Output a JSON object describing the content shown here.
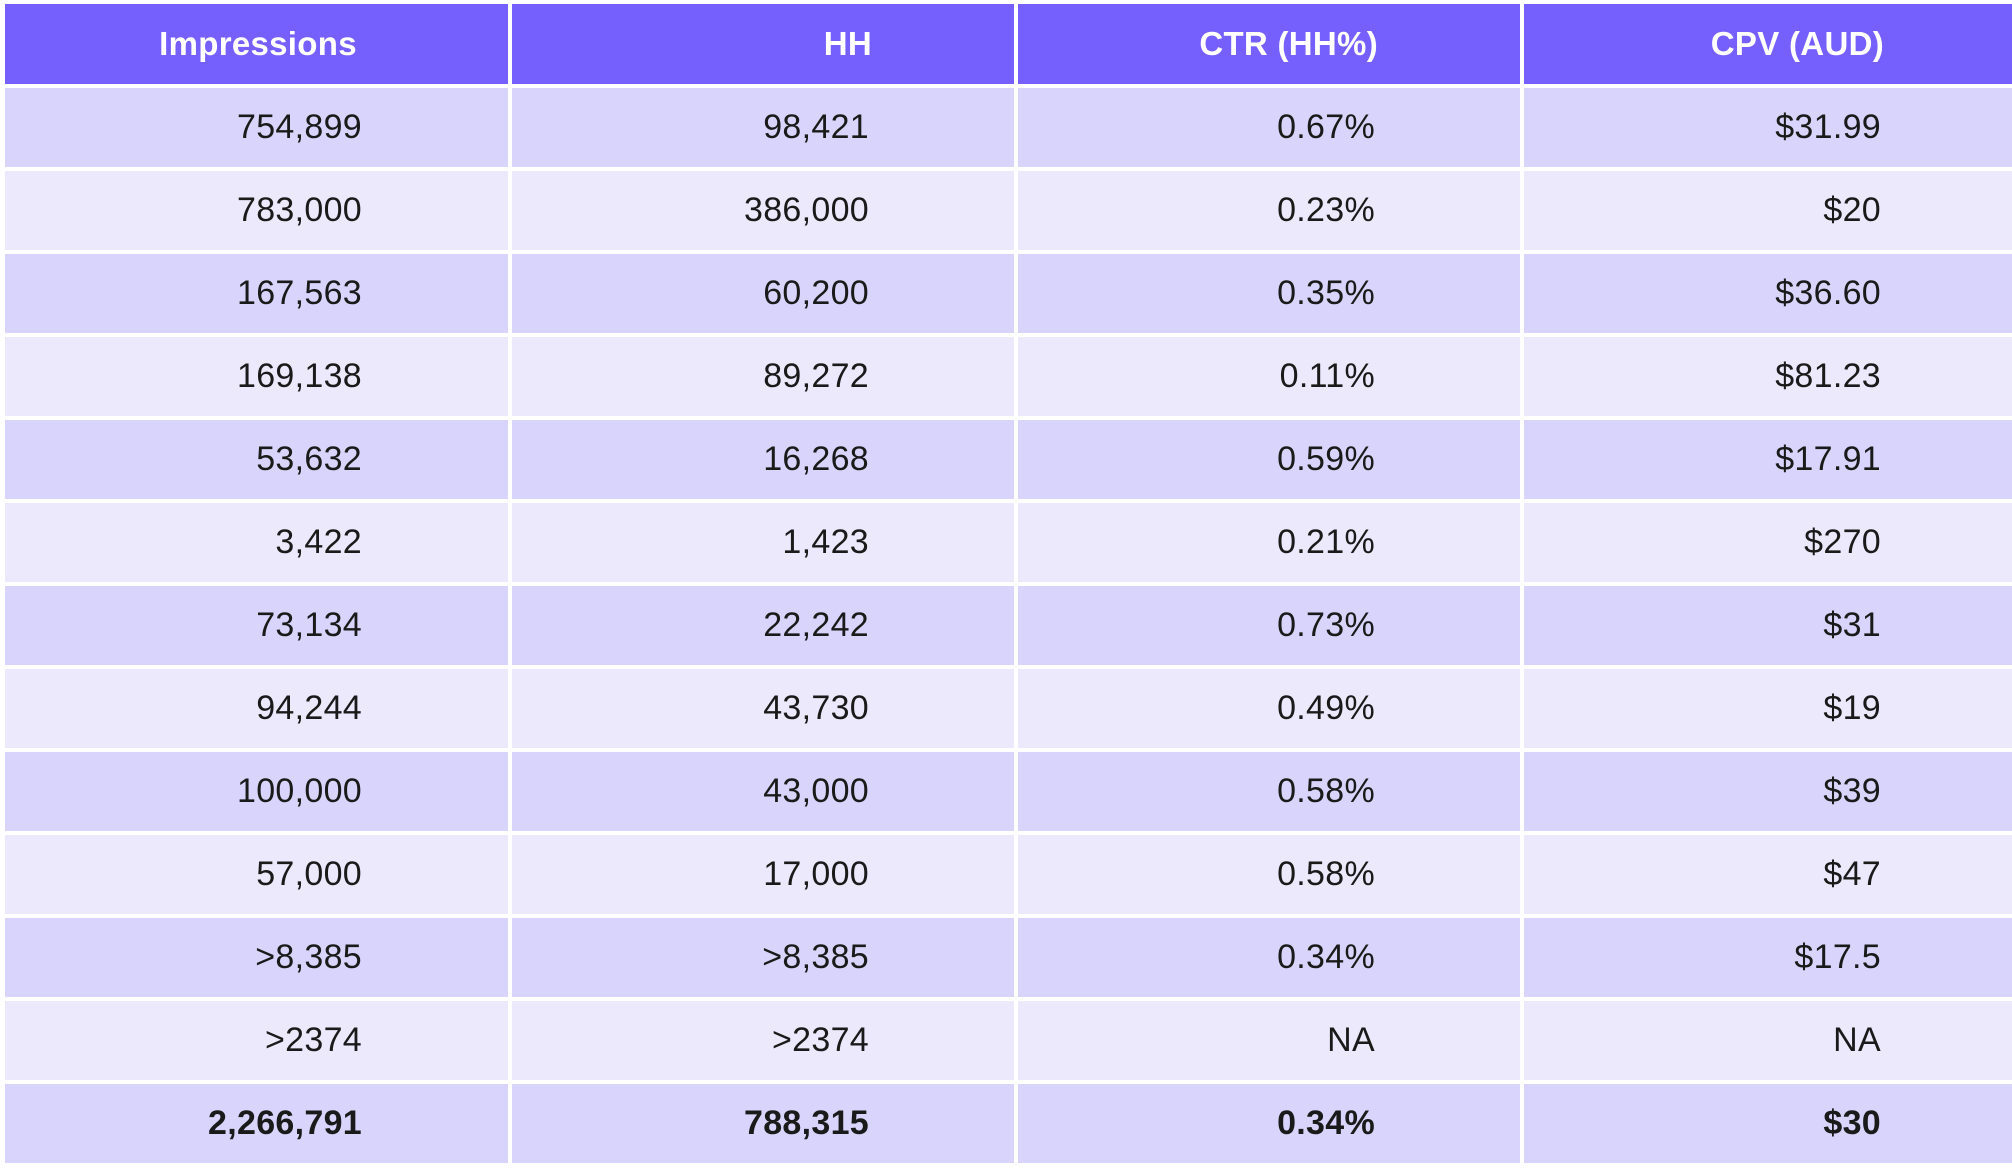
{
  "table": {
    "headers": [
      "Impressions",
      "HH",
      "CTR (HH%)",
      "CPV (AUD)"
    ],
    "rows": [
      [
        "754,899",
        "98,421",
        "0.67%",
        "$31.99"
      ],
      [
        "783,000",
        "386,000",
        "0.23%",
        "$20"
      ],
      [
        "167,563",
        "60,200",
        "0.35%",
        "$36.60"
      ],
      [
        "169,138",
        "89,272",
        "0.11%",
        "$81.23"
      ],
      [
        "53,632",
        "16,268",
        "0.59%",
        "$17.91"
      ],
      [
        "3,422",
        "1,423",
        "0.21%",
        "$270"
      ],
      [
        "73,134",
        "22,242",
        "0.73%",
        "$31"
      ],
      [
        "94,244",
        "43,730",
        "0.49%",
        "$19"
      ],
      [
        "100,000",
        "43,000",
        "0.58%",
        "$39"
      ],
      [
        "57,000",
        "17,000",
        "0.58%",
        "$47"
      ],
      [
        ">8,385",
        ">8,385",
        "0.34%",
        "$17.5"
      ],
      [
        ">2374",
        ">2374",
        "NA",
        "NA"
      ]
    ],
    "total": [
      "2,266,791",
      "788,315",
      "0.34%",
      "$30"
    ]
  },
  "colors": {
    "header_bg": "#7660fd",
    "row_dark": "#d9d4fb",
    "row_light": "#ece9fc",
    "header_text": "#ffffff"
  }
}
